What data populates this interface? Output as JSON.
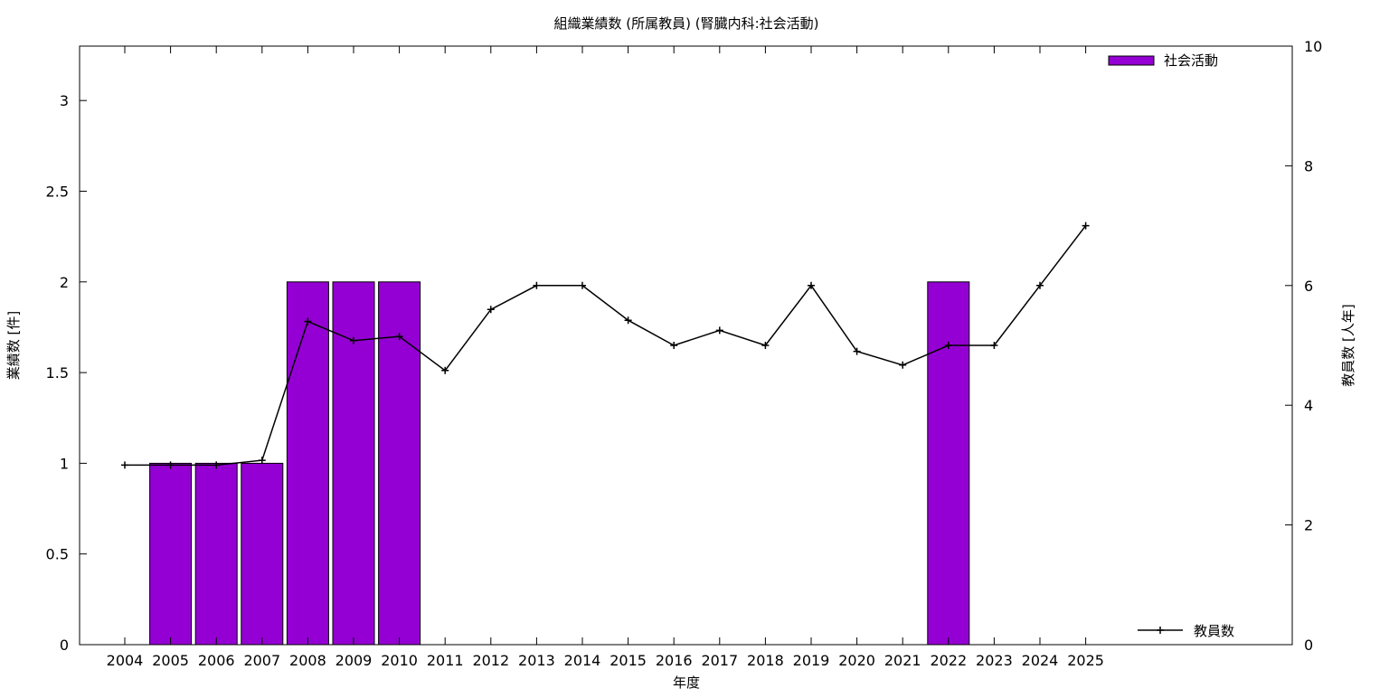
{
  "chart_data": {
    "type": "bar",
    "title": "組織業績数 (所属教員) (腎臓内科:社会活動)",
    "xlabel": "年度",
    "ylabel": "業績数 [件]",
    "y2label": "教員数 [人年]",
    "categories": [
      "2004",
      "2005",
      "2006",
      "2007",
      "2008",
      "2009",
      "2010",
      "2011",
      "2012",
      "2013",
      "2014",
      "2015",
      "2016",
      "2017",
      "2018",
      "2019",
      "2020",
      "2021",
      "2022",
      "2023",
      "2024",
      "2025"
    ],
    "ylim": [
      0,
      3.3
    ],
    "yticks": [
      "0",
      "0.5",
      "1",
      "1.5",
      "2",
      "2.5",
      "3"
    ],
    "y2lim": [
      0,
      10
    ],
    "y2ticks": [
      "0",
      "2",
      "4",
      "6",
      "8",
      "10"
    ],
    "grid": false,
    "series": [
      {
        "name": "社会活動",
        "type": "bar",
        "axis": "left",
        "color": "#9400d3",
        "values": [
          0,
          1,
          1,
          1,
          2,
          2,
          2,
          0,
          0,
          0,
          0,
          0,
          0,
          0,
          0,
          0,
          0,
          0,
          2,
          0,
          0,
          0
        ]
      },
      {
        "name": "教員数",
        "type": "line",
        "axis": "right",
        "color": "#000000",
        "values": [
          3.0,
          3.0,
          3.0,
          3.08,
          5.4,
          5.08,
          5.15,
          4.58,
          5.6,
          6.0,
          6.0,
          5.42,
          5.0,
          5.25,
          5.0,
          6.0,
          4.9,
          4.67,
          5.0,
          5.0,
          6.0,
          7.0
        ]
      }
    ],
    "legend": {
      "bar_position": "top-right",
      "line_position": "bottom-right"
    }
  }
}
